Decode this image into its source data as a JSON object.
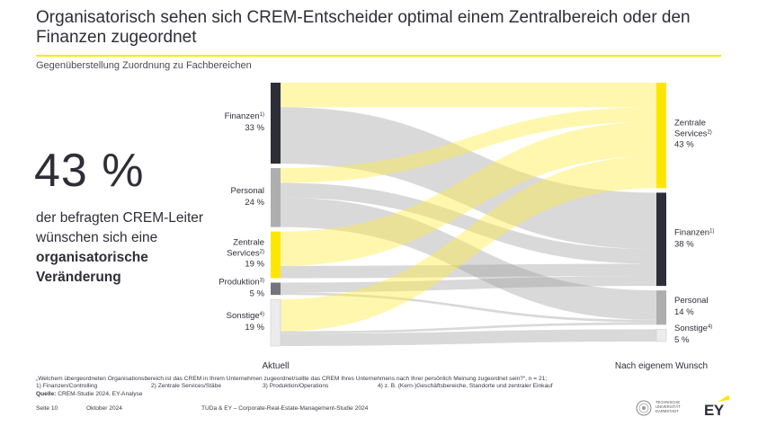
{
  "header": {
    "title": "Organisatorisch sehen sich CREM-Entscheider optimal einem Zentralbereich oder den Finanzen zugeordnet",
    "subtitle": "Gegenüberstellung Zuordnung zu Fachbereichen"
  },
  "kpi": {
    "value": "43 %",
    "text_plain": "der befragten CREM-Leiter wünschen sich eine",
    "text_bold": "organisatorische Veränderung"
  },
  "colors": {
    "accent": "#ffe600",
    "dark": "#2e2e38",
    "grey_flow": "#c4c4c4",
    "yellow_flow": "#fff176"
  },
  "chart_data": {
    "type": "sankey",
    "axis_left_label": "Aktuell",
    "axis_right_label": "Nach eigenem Wunsch",
    "left_nodes": [
      {
        "name": "Finanzen",
        "sup": "1)",
        "value": 33,
        "value_label": "33 %",
        "color": "#2e2e38"
      },
      {
        "name": "Personal",
        "sup": "",
        "value": 24,
        "value_label": "24 %",
        "color": "#aeaeae"
      },
      {
        "name": "Zentrale Services",
        "name_line1": "Zentrale",
        "name_line2": "Services",
        "sup": "2)",
        "value": 19,
        "value_label": "19 %",
        "color": "#ffe600"
      },
      {
        "name": "Produktion",
        "sup": "3)",
        "value": 5,
        "value_label": "5 %",
        "color": "#74747e"
      },
      {
        "name": "Sonstige",
        "sup": "4)",
        "value": 19,
        "value_label": "19 %",
        "color": "#ececec"
      }
    ],
    "right_nodes": [
      {
        "name": "Zentrale Services",
        "name_line1": "Zentrale",
        "name_line2": "Services",
        "sup": "2)",
        "value": 43,
        "value_label": "43 %",
        "color": "#ffe600"
      },
      {
        "name": "Finanzen",
        "sup": "1)",
        "value": 38,
        "value_label": "38 %",
        "color": "#2e2e38"
      },
      {
        "name": "Personal",
        "sup": "",
        "value": 14,
        "value_label": "14 %",
        "color": "#aeaeae"
      },
      {
        "name": "Sonstige",
        "sup": "4)",
        "value": 5,
        "value_label": "5 %",
        "color": "#ececec"
      }
    ],
    "flows": [
      {
        "from": "Finanzen",
        "to": "Zentrale Services",
        "value": 10,
        "tone": "yellow"
      },
      {
        "from": "Finanzen",
        "to": "Finanzen",
        "value": 23,
        "tone": "grey"
      },
      {
        "from": "Personal",
        "to": "Zentrale Services",
        "value": 6,
        "tone": "yellow"
      },
      {
        "from": "Personal",
        "to": "Finanzen",
        "value": 6,
        "tone": "grey"
      },
      {
        "from": "Personal",
        "to": "Personal",
        "value": 12,
        "tone": "grey"
      },
      {
        "from": "Zentrale Services",
        "to": "Zentrale Services",
        "value": 14,
        "tone": "yellow"
      },
      {
        "from": "Zentrale Services",
        "to": "Finanzen",
        "value": 5,
        "tone": "grey"
      },
      {
        "from": "Produktion",
        "to": "Finanzen",
        "value": 4,
        "tone": "grey"
      },
      {
        "from": "Produktion",
        "to": "Personal",
        "value": 1,
        "tone": "grey"
      },
      {
        "from": "Sonstige",
        "to": "Zentrale Services",
        "value": 13,
        "tone": "yellow"
      },
      {
        "from": "Sonstige",
        "to": "Personal",
        "value": 1,
        "tone": "grey"
      },
      {
        "from": "Sonstige",
        "to": "Sonstige",
        "value": 5,
        "tone": "grey"
      }
    ]
  },
  "footnote": {
    "question": "„Welchem übergeordneten Organisationsbereich ist das CREM in Ihrem Unternehmen zugeordnet/sollte das CREM Ihres Unternehmens nach Ihrer persönlich Meinung zugeordnet sein?“, n = 21;",
    "notes": [
      "1) Finanzen/Controlling",
      "2) Zentrale Services/Stäbe",
      "3) Produktion/Operations",
      "4) z. B. (Kern-)Geschäftsbereiche, Standorte und zentraler Einkauf"
    ],
    "source_label": "Quelle:",
    "source_text": "CREM-Studie 2024, EY-Analyse"
  },
  "footer": {
    "page": "Seite 10",
    "date": "Oktober 2024",
    "study": "TUDa & EY – Corporate-Real-Estate-Management-Studie 2024"
  },
  "logos": {
    "tu_text": "TECHNISCHE UNIVERSITÄT DARMSTADT",
    "ey_text": "EY"
  }
}
